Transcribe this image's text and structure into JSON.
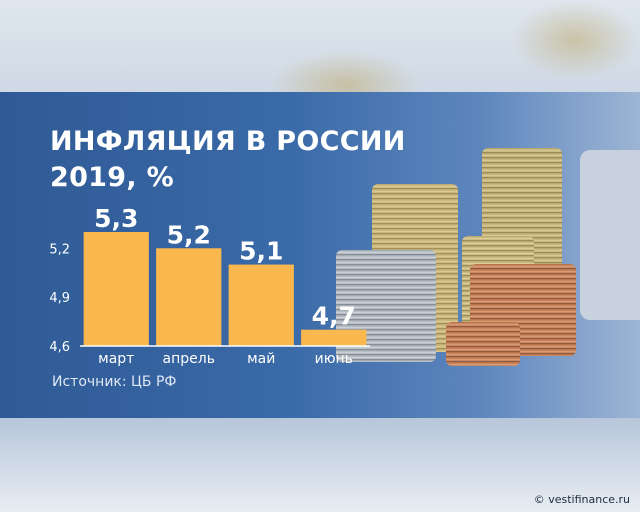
{
  "header": {
    "title_line1": "ИНФЛЯЦИЯ В РОССИИ",
    "title_line2": "2019, %"
  },
  "chart_data": {
    "type": "bar",
    "categories": [
      "март",
      "апрель",
      "май",
      "июнь"
    ],
    "values": [
      5.3,
      5.2,
      5.1,
      4.7
    ],
    "data_labels": [
      "5,3",
      "5,2",
      "5,1",
      "4,7"
    ],
    "y_ticks": [
      4.6,
      4.9,
      5.2
    ],
    "y_tick_labels": [
      "4,6",
      "4,9",
      "5,2"
    ],
    "ylim": [
      4.6,
      5.3
    ],
    "bar_color": "#fbb84f",
    "axis_color": "#ffffff",
    "grid": false
  },
  "footer": {
    "source": "Источник: ЦБ РФ",
    "copyright": "© vestifinance.ru"
  }
}
